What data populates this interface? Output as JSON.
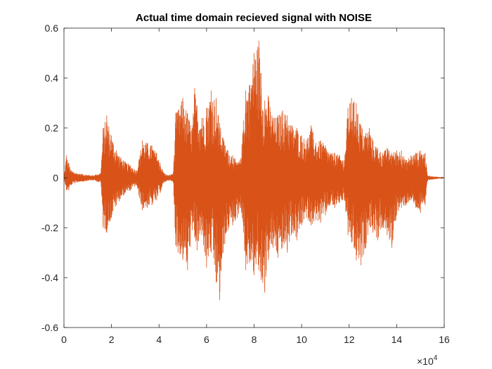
{
  "chart_data": {
    "type": "line",
    "title": "Actual time domain recieved signal with NOISE",
    "xlabel": "",
    "ylabel": "",
    "xlim": [
      0,
      160000
    ],
    "ylim": [
      -0.6,
      0.6
    ],
    "x_tick_labels": [
      "0",
      "2",
      "4",
      "6",
      "8",
      "10",
      "12",
      "14",
      "16"
    ],
    "x_tick_values": [
      0,
      20000,
      40000,
      60000,
      80000,
      100000,
      120000,
      140000,
      160000
    ],
    "x_exponent_base": "×10",
    "x_exponent_power": "4",
    "y_tick_labels": [
      "0.6",
      "0.4",
      "0.2",
      "0",
      "-0.2",
      "-0.4",
      "-0.6"
    ],
    "y_tick_values": [
      0.6,
      0.4,
      0.2,
      0,
      -0.2,
      -0.4,
      -0.6
    ],
    "grid": false,
    "line_color": "#d95319",
    "series": [
      {
        "x": [
          0,
          1000,
          2000,
          3000,
          5000,
          8000,
          12000,
          15500,
          16500,
          18000,
          20000,
          22000,
          25000,
          28000,
          30500,
          31500,
          33000,
          35000,
          37000,
          39000,
          40500,
          42000,
          44000,
          46000,
          47000,
          48000,
          50000,
          52000,
          54000,
          55000,
          56000,
          58000,
          60000,
          62000,
          64000,
          65500,
          67000,
          69000,
          71000,
          73000,
          74500,
          75500,
          76500,
          78000,
          80000,
          82000,
          83000,
          84500,
          86000,
          88000,
          90000,
          92000,
          94000,
          96000,
          98000,
          100000,
          102000,
          104000,
          106000,
          108000,
          110000,
          112000,
          114000,
          116000,
          118000,
          119500,
          121000,
          123000,
          125000,
          127000,
          128500,
          130000,
          132000,
          134000,
          136000,
          138000,
          140000,
          142000,
          144000,
          146000,
          148000,
          150000,
          152000,
          153000,
          160000
        ],
        "y_max": [
          0.0,
          0.09,
          0.06,
          0.03,
          0.02,
          0.015,
          0.01,
          0.02,
          0.2,
          0.25,
          0.17,
          0.11,
          0.07,
          0.05,
          0.03,
          0.07,
          0.15,
          0.14,
          0.13,
          0.1,
          0.06,
          0.02,
          0.01,
          0.02,
          0.26,
          0.27,
          0.32,
          0.26,
          0.2,
          0.36,
          0.29,
          0.24,
          0.28,
          0.35,
          0.32,
          0.22,
          0.16,
          0.11,
          0.09,
          0.06,
          0.08,
          0.23,
          0.35,
          0.37,
          0.5,
          0.55,
          0.42,
          0.31,
          0.33,
          0.24,
          0.25,
          0.27,
          0.25,
          0.21,
          0.2,
          0.17,
          0.15,
          0.21,
          0.14,
          0.15,
          0.13,
          0.1,
          0.1,
          0.09,
          0.07,
          0.28,
          0.32,
          0.3,
          0.21,
          0.18,
          0.2,
          0.15,
          0.12,
          0.1,
          0.12,
          0.1,
          0.11,
          0.11,
          0.07,
          0.09,
          0.1,
          0.11,
          0.1,
          0.01,
          0.0
        ],
        "y_min": [
          0.0,
          -0.05,
          -0.05,
          -0.03,
          -0.02,
          -0.015,
          -0.01,
          -0.02,
          -0.2,
          -0.22,
          -0.16,
          -0.11,
          -0.07,
          -0.05,
          -0.03,
          -0.07,
          -0.13,
          -0.12,
          -0.11,
          -0.09,
          -0.06,
          -0.02,
          -0.01,
          -0.02,
          -0.27,
          -0.3,
          -0.33,
          -0.37,
          -0.21,
          -0.24,
          -0.29,
          -0.23,
          -0.36,
          -0.3,
          -0.42,
          -0.49,
          -0.3,
          -0.21,
          -0.19,
          -0.16,
          -0.12,
          -0.22,
          -0.37,
          -0.34,
          -0.39,
          -0.37,
          -0.41,
          -0.46,
          -0.33,
          -0.28,
          -0.32,
          -0.28,
          -0.3,
          -0.22,
          -0.25,
          -0.19,
          -0.16,
          -0.19,
          -0.17,
          -0.18,
          -0.15,
          -0.11,
          -0.12,
          -0.1,
          -0.09,
          -0.23,
          -0.26,
          -0.33,
          -0.35,
          -0.28,
          -0.19,
          -0.22,
          -0.25,
          -0.2,
          -0.23,
          -0.28,
          -0.15,
          -0.12,
          -0.11,
          -0.09,
          -0.12,
          -0.14,
          -0.11,
          -0.01,
          0.0
        ]
      }
    ]
  }
}
